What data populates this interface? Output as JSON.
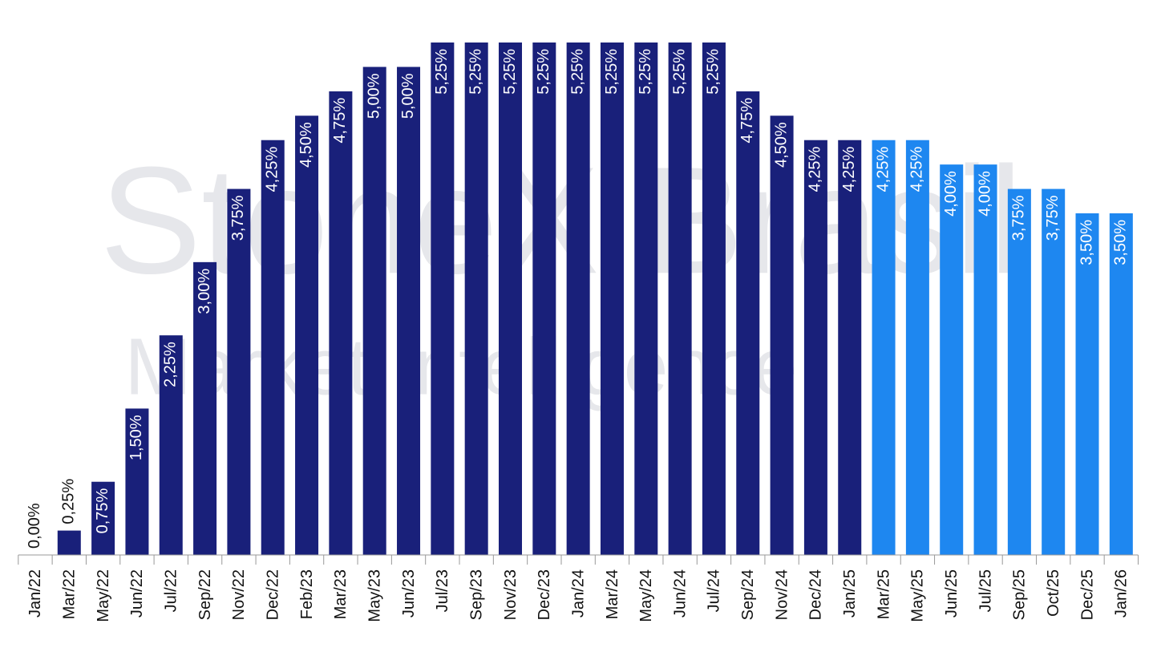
{
  "chart_data": {
    "type": "bar",
    "watermark": [
      "StoneX Brasil",
      "Market Intelligence"
    ],
    "categories": [
      "Jan/22",
      "Mar/22",
      "May/22",
      "Jun/22",
      "Jul/22",
      "Sep/22",
      "Nov/22",
      "Dec/22",
      "Feb/23",
      "Mar/23",
      "May/23",
      "Jun/23",
      "Jul/23",
      "Sep/23",
      "Nov/23",
      "Dec/23",
      "Jan/24",
      "Mar/24",
      "May/24",
      "Jun/24",
      "Jul/24",
      "Sep/24",
      "Nov/24",
      "Dec/24",
      "Jan/25",
      "Mar/25",
      "May/25",
      "Jun/25",
      "Jul/25",
      "Sep/25",
      "Oct/25",
      "Dec/25",
      "Jan/26"
    ],
    "values": [
      0,
      0.25,
      0.75,
      1.5,
      2.25,
      3,
      3.75,
      4.25,
      4.5,
      4.75,
      5,
      5,
      5.25,
      5.25,
      5.25,
      5.25,
      5.25,
      5.25,
      5.25,
      5.25,
      5.25,
      4.75,
      4.5,
      4.25,
      4.25,
      4.25,
      4.25,
      4,
      4,
      3.75,
      3.75,
      3.5,
      3.5
    ],
    "value_labels": [
      "0,00%",
      "0,25%",
      "0,75%",
      "1,50%",
      "2,25%",
      "3,00%",
      "3,75%",
      "4,25%",
      "4,50%",
      "4,75%",
      "5,00%",
      "5,00%",
      "5,25%",
      "5,25%",
      "5,25%",
      "5,25%",
      "5,25%",
      "5,25%",
      "5,25%",
      "5,25%",
      "5,25%",
      "4,75%",
      "4,50%",
      "4,25%",
      "4,25%",
      "4,25%",
      "4,25%",
      "4,00%",
      "4,00%",
      "3,75%",
      "3,75%",
      "3,50%",
      "3,50%"
    ],
    "colors": [
      "#19207a",
      "#19207a",
      "#19207a",
      "#19207a",
      "#19207a",
      "#19207a",
      "#19207a",
      "#19207a",
      "#19207a",
      "#19207a",
      "#19207a",
      "#19207a",
      "#19207a",
      "#19207a",
      "#19207a",
      "#19207a",
      "#19207a",
      "#19207a",
      "#19207a",
      "#19207a",
      "#19207a",
      "#19207a",
      "#19207a",
      "#19207a",
      "#19207a",
      "#1e87f0",
      "#1e87f0",
      "#1e87f0",
      "#1e87f0",
      "#1e87f0",
      "#1e87f0",
      "#1e87f0",
      "#1e87f0"
    ]
  }
}
